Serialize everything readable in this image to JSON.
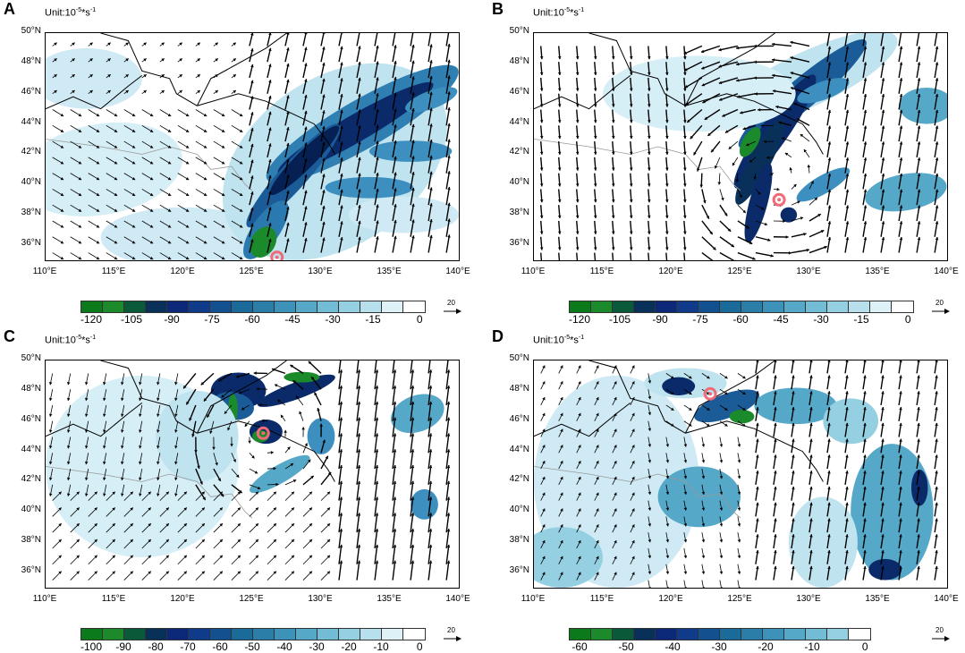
{
  "panels": [
    {
      "letter": "A",
      "unit_base": "Unit:10",
      "unit_exp": "-5",
      "unit_tail": "*s",
      "unit_exp2": "-1",
      "colorbar_ticks": [
        "-120",
        "-105",
        "-90",
        "-75",
        "-60",
        "-45",
        "-30",
        "-15",
        "0"
      ],
      "colorbar_colors": [
        "#0b7a1a",
        "#1c8a2a",
        "#0a5a3a",
        "#083058",
        "#0c2878",
        "#103a8a",
        "#12508f",
        "#1a6a9a",
        "#2a7ea8",
        "#3c92b8",
        "#56a8c8",
        "#72bcd6",
        "#94cfe2",
        "#b8e0ec",
        "#ddf1f7",
        "#ffffff"
      ],
      "reference_vector": "20",
      "cyclone_location": "126.8°E, 35.2°N"
    },
    {
      "letter": "B",
      "unit_base": "Unit:10",
      "unit_exp": "-5",
      "unit_tail": "*s",
      "unit_exp2": "-1",
      "colorbar_ticks": [
        "-120",
        "-105",
        "-90",
        "-75",
        "-60",
        "-45",
        "-30",
        "-15",
        "0"
      ],
      "colorbar_colors": [
        "#0b7a1a",
        "#1c8a2a",
        "#0a5a3a",
        "#083058",
        "#0c2878",
        "#103a8a",
        "#12508f",
        "#1a6a9a",
        "#2a7ea8",
        "#3c92b8",
        "#56a8c8",
        "#72bcd6",
        "#94cfe2",
        "#b8e0ec",
        "#ddf1f7",
        "#ffffff"
      ],
      "reference_vector": "20",
      "cyclone_location": "127.8°E, 39.0°N"
    },
    {
      "letter": "C",
      "unit_base": "Unit:10",
      "unit_exp": "-5",
      "unit_tail": "*s",
      "unit_exp2": "-1",
      "colorbar_ticks": [
        "-100",
        "-90",
        "-80",
        "-70",
        "-60",
        "-50",
        "-40",
        "-30",
        "-20",
        "-10",
        "0"
      ],
      "colorbar_colors": [
        "#0b7a1a",
        "#1c8a2a",
        "#0a5a3a",
        "#083058",
        "#0c2878",
        "#103a8a",
        "#12508f",
        "#1a6a9a",
        "#2a7ea8",
        "#3c92b8",
        "#56a8c8",
        "#72bcd6",
        "#94cfe2",
        "#b8e0ec",
        "#ddf1f7",
        "#ffffff"
      ],
      "reference_vector": "20",
      "cyclone_location": "125.8°E, 45.2°N"
    },
    {
      "letter": "D",
      "unit_base": "Unit:10",
      "unit_exp": "-5",
      "unit_tail": "*s",
      "unit_exp2": "-1",
      "colorbar_ticks": [
        "-60",
        "-50",
        "-40",
        "-30",
        "-20",
        "-10",
        "0"
      ],
      "colorbar_colors": [
        "#0b7a1a",
        "#1c8a2a",
        "#0a5a3a",
        "#083058",
        "#0c2878",
        "#103a8a",
        "#12508f",
        "#1a6a9a",
        "#2a7ea8",
        "#3c92b8",
        "#56a8c8",
        "#72bcd6",
        "#94cfe2",
        "#ffffff"
      ],
      "reference_vector": "20",
      "cyclone_location": "122.8°E, 47.8°N"
    }
  ],
  "lat_labels": [
    "50°N",
    "48°N",
    "46°N",
    "44°N",
    "42°N",
    "40°N",
    "38°N",
    "36°N"
  ],
  "lon_labels": [
    "110°E",
    "115°E",
    "120°E",
    "125°E",
    "130°E",
    "135°E",
    "140°E"
  ],
  "colors": {
    "cyclone_marker": "#f06a78",
    "coastline": "#000000",
    "border_gray": "#999999",
    "arrow": "#000000"
  }
}
